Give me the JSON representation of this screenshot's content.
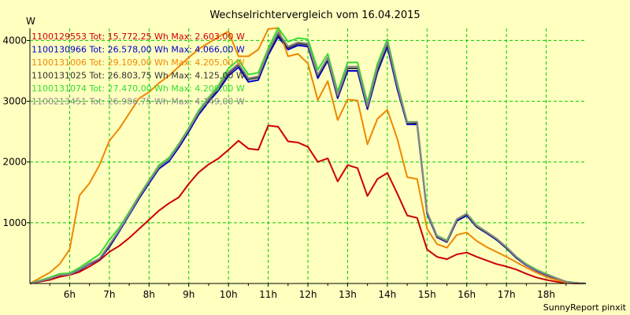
{
  "chart_data": {
    "type": "line",
    "title": "Wechselrichtervergleich vom 16.04.2015",
    "ylabel": "W",
    "xlabel": "",
    "footer": "SunnyReport pinxit",
    "xlim": [
      5.0,
      19.0
    ],
    "ylim": [
      0,
      4200
    ],
    "x_ticks": [
      6,
      7,
      8,
      9,
      10,
      11,
      12,
      13,
      14,
      15,
      16,
      17,
      18
    ],
    "x_tick_labels": [
      "6h",
      "7h",
      "8h",
      "9h",
      "10h",
      "11h",
      "12h",
      "13h",
      "14h",
      "15h",
      "16h",
      "17h",
      "18h"
    ],
    "y_ticks": [
      1000,
      2000,
      3000,
      4000
    ],
    "y_tick_labels": [
      "1000",
      "2000",
      "3000",
      "4000"
    ],
    "grid": true,
    "legend_position": "top-left",
    "x": [
      5.0,
      5.5,
      5.75,
      6.0,
      6.25,
      6.5,
      6.75,
      7.0,
      7.25,
      7.5,
      7.75,
      8.0,
      8.25,
      8.5,
      8.75,
      9.0,
      9.25,
      9.5,
      9.75,
      10.0,
      10.25,
      10.5,
      10.75,
      11.0,
      11.25,
      11.5,
      11.75,
      12.0,
      12.25,
      12.5,
      12.75,
      13.0,
      13.25,
      13.5,
      13.75,
      14.0,
      14.25,
      14.5,
      14.75,
      15.0,
      15.25,
      15.5,
      15.75,
      16.0,
      16.25,
      16.5,
      16.75,
      17.0,
      17.25,
      17.5,
      17.75,
      18.0,
      18.25,
      18.5,
      18.75,
      19.0
    ],
    "series": [
      {
        "name": "1100129553",
        "legend": "1100129553 Tot: 15.772,25 Wh Max: 2.603,00 W",
        "color": "#cc0000",
        "values": [
          0,
          60,
          110,
          140,
          190,
          280,
          380,
          520,
          620,
          750,
          900,
          1050,
          1200,
          1320,
          1420,
          1640,
          1830,
          1960,
          2060,
          2200,
          2350,
          2220,
          2200,
          2600,
          2580,
          2340,
          2320,
          2250,
          2000,
          2060,
          1680,
          1950,
          1900,
          1440,
          1720,
          1820,
          1480,
          1120,
          1080,
          560,
          440,
          400,
          480,
          510,
          440,
          380,
          320,
          280,
          230,
          160,
          100,
          60,
          30,
          10,
          0,
          0
        ]
      },
      {
        "name": "1100130966",
        "legend": "1100130966 Tot: 26.578,00 Wh Max: 4.066,00 W",
        "color": "#0000cc",
        "values": [
          0,
          80,
          140,
          150,
          220,
          320,
          400,
          600,
          860,
          1130,
          1400,
          1650,
          1890,
          2010,
          2240,
          2500,
          2780,
          2990,
          3180,
          3420,
          3560,
          3320,
          3350,
          3760,
          4060,
          3850,
          3920,
          3900,
          3380,
          3670,
          3050,
          3500,
          3500,
          2870,
          3480,
          3900,
          3200,
          2620,
          2620,
          1150,
          760,
          680,
          1030,
          1120,
          930,
          830,
          720,
          580,
          420,
          300,
          210,
          140,
          80,
          30,
          10,
          0
        ]
      },
      {
        "name": "1100131006",
        "legend": "1100131006 Tot: 29.109,00 Wh Max: 4.205,00 W",
        "color": "#ee8800",
        "values": [
          0,
          180,
          320,
          560,
          1450,
          1650,
          1950,
          2350,
          2550,
          2800,
          3050,
          3150,
          3300,
          3420,
          3570,
          3720,
          3860,
          3960,
          4060,
          4150,
          3740,
          3740,
          3850,
          4190,
          4205,
          3740,
          3780,
          3620,
          3020,
          3330,
          2690,
          3030,
          3010,
          2290,
          2710,
          2860,
          2380,
          1750,
          1720,
          900,
          650,
          590,
          800,
          840,
          700,
          600,
          520,
          440,
          350,
          260,
          180,
          110,
          60,
          20,
          5,
          0
        ]
      },
      {
        "name": "1100131025",
        "legend": "1100131025 Tot: 26.803,75 Wh Max: 4.125,00 W",
        "color": "#333333",
        "values": [
          0,
          80,
          140,
          150,
          230,
          330,
          410,
          620,
          880,
          1150,
          1420,
          1680,
          1910,
          2040,
          2270,
          2530,
          2810,
          3020,
          3210,
          3460,
          3600,
          3360,
          3390,
          3800,
          4100,
          3880,
          3950,
          3930,
          3420,
          3700,
          3080,
          3540,
          3540,
          2900,
          3520,
          3950,
          3240,
          2640,
          2640,
          1170,
          770,
          690,
          1050,
          1140,
          940,
          840,
          730,
          590,
          430,
          310,
          220,
          150,
          90,
          30,
          10,
          0
        ]
      },
      {
        "name": "1100131074",
        "legend": "1100131074 Tot: 27.470,00 Wh Max: 4.209,00 W",
        "color": "#33dd33",
        "values": [
          0,
          100,
          160,
          170,
          260,
          370,
          480,
          720,
          920,
          1180,
          1450,
          1700,
          1950,
          2070,
          2300,
          2560,
          2850,
          3060,
          3260,
          3540,
          3680,
          3440,
          3470,
          3870,
          4209,
          3980,
          4040,
          4020,
          3520,
          3780,
          3160,
          3640,
          3640,
          2980,
          3620,
          4020,
          3300,
          2660,
          2660,
          1180,
          790,
          710,
          1060,
          1150,
          960,
          850,
          740,
          600,
          440,
          320,
          230,
          160,
          90,
          30,
          10,
          0
        ]
      },
      {
        "name": "1100213451",
        "legend": "1100213451 Tot: 26.986,75 Wh Max: 4.149,00 W",
        "color": "#888888",
        "values": [
          0,
          80,
          140,
          150,
          230,
          330,
          410,
          640,
          880,
          1150,
          1430,
          1680,
          1920,
          2040,
          2280,
          2540,
          2820,
          3040,
          3230,
          3480,
          3620,
          3380,
          3410,
          3820,
          4140,
          3900,
          3970,
          3950,
          3440,
          3720,
          3100,
          3570,
          3570,
          2920,
          3560,
          3970,
          3260,
          2650,
          2660,
          1180,
          780,
          700,
          1060,
          1150,
          950,
          850,
          740,
          600,
          440,
          310,
          220,
          150,
          90,
          30,
          10,
          0
        ]
      }
    ]
  }
}
